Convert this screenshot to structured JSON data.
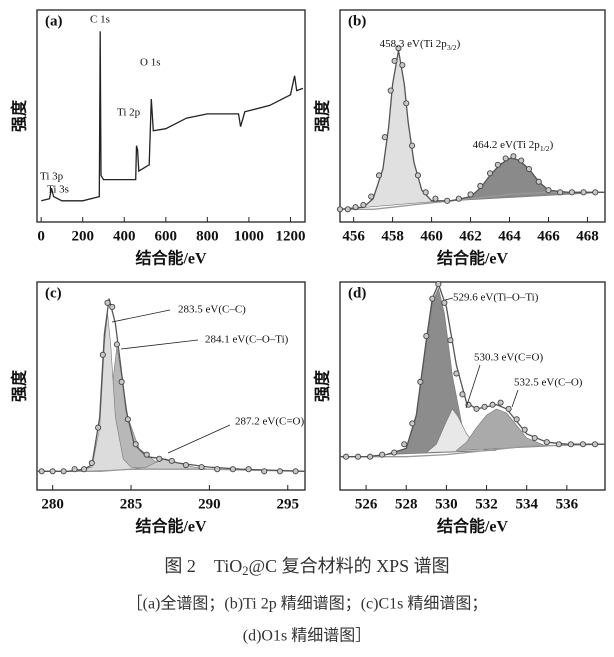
{
  "chart_data": [
    {
      "type": "line",
      "panel": "(a)",
      "xlabel": "结合能/eV",
      "ylabel": "强度",
      "xlim": [
        -20,
        1270
      ],
      "xticks": [
        0,
        200,
        400,
        600,
        800,
        1000,
        1200
      ],
      "ylim": [
        0,
        100
      ],
      "series": [
        {
          "style": "line",
          "color": "#222222",
          "x": [
            0,
            40,
            50,
            60,
            100,
            200,
            280,
            284,
            288,
            300,
            400,
            455,
            459,
            464,
            470,
            520,
            530,
            540,
            600,
            700,
            800,
            950,
            960,
            980,
            1100,
            1200,
            1220,
            1230,
            1260
          ],
          "values": [
            10,
            11,
            16,
            12,
            10,
            10,
            12,
            90,
            22,
            20,
            20,
            20,
            36,
            34,
            24,
            27,
            58,
            43,
            44,
            49,
            51,
            51,
            45,
            52,
            55,
            60,
            69,
            62,
            63
          ]
        }
      ],
      "annotations": [
        "C 1s",
        "O 1s",
        "Ti 2p",
        "Ti 3p",
        "Ti 3s"
      ]
    },
    {
      "type": "line",
      "panel": "(b)",
      "xlabel": "结合能/eV",
      "ylabel": "强度",
      "xlim": [
        455.3,
        468.9
      ],
      "xticks": [
        456,
        458,
        460,
        462,
        464,
        466,
        468
      ],
      "ylim": [
        0,
        100
      ],
      "series": [
        {
          "style": "area",
          "color": "#e0e0e0",
          "x": [
            455.3,
            456.5,
            457,
            457.5,
            457.8,
            458,
            458.3,
            458.6,
            458.8,
            459.1,
            459.5,
            460,
            461,
            462
          ],
          "values": [
            6,
            7,
            11,
            25,
            45,
            65,
            81,
            65,
            47,
            28,
            15,
            10,
            10,
            11
          ]
        },
        {
          "style": "area",
          "color": "#8a8a8a",
          "x": [
            461,
            462,
            462.5,
            463,
            463.5,
            464,
            464.2,
            464.5,
            465,
            465.5,
            466,
            467,
            468.9
          ],
          "values": [
            10,
            12,
            16,
            22,
            27,
            30,
            30,
            29,
            25,
            19,
            15,
            14,
            14
          ]
        },
        {
          "style": "line",
          "color": "#999999",
          "x": [
            455.3,
            457,
            458,
            459,
            460,
            461,
            462,
            463,
            464,
            465,
            466,
            467,
            468.9
          ],
          "values": [
            6,
            6,
            7,
            8,
            9,
            10,
            11,
            12,
            13,
            13.5,
            14,
            14,
            14
          ]
        },
        {
          "style": "line",
          "color": "#555555",
          "x": [
            455.3,
            456.5,
            457,
            457.5,
            457.8,
            458,
            458.3,
            458.6,
            458.8,
            459.1,
            459.5,
            460,
            461,
            462,
            462.5,
            463,
            463.5,
            464,
            464.2,
            464.5,
            465,
            465.5,
            466,
            467,
            468.9
          ],
          "values": [
            6,
            7,
            11,
            25,
            45,
            65,
            81,
            65,
            47,
            28,
            15,
            10,
            10,
            12,
            16,
            22,
            27,
            30,
            30,
            29,
            25,
            19,
            15,
            14,
            14
          ]
        },
        {
          "style": "points",
          "color": "#444444",
          "x": [
            455.3,
            455.7,
            456.1,
            456.5,
            456.9,
            457.3,
            457.6,
            457.9,
            458.1,
            458.3,
            458.5,
            458.7,
            459.0,
            459.3,
            459.7,
            460.2,
            460.8,
            461.4,
            462.0,
            462.5,
            463.0,
            463.4,
            463.8,
            464.2,
            464.6,
            465.0,
            465.5,
            466.0,
            466.6,
            467.2,
            467.8,
            468.4
          ],
          "values": [
            6,
            6,
            7,
            8,
            12,
            22,
            40,
            62,
            76,
            82,
            74,
            56,
            36,
            22,
            14,
            11,
            10,
            11,
            13,
            17,
            23,
            27,
            30,
            31,
            29,
            25,
            19,
            15,
            14,
            14,
            14,
            14
          ]
        }
      ],
      "annotations": [
        {
          "text": "458.3 eV(Ti 2p",
          "sub": "3/2",
          "tail": ")"
        },
        {
          "text": "464.2 eV(Ti 2p",
          "sub": "1/2",
          "tail": ")"
        }
      ]
    },
    {
      "type": "line",
      "panel": "(c)",
      "xlabel": "结合能/eV",
      "ylabel": "强度",
      "xlim": [
        279.0,
        296.1
      ],
      "xticks": [
        280,
        285,
        290,
        295
      ],
      "ylim": [
        0,
        100
      ],
      "series": [
        {
          "style": "area",
          "color": "#b8b8b8",
          "x": [
            282.5,
            283,
            283.5,
            283.8,
            284.1,
            284.4,
            284.8,
            285.5,
            286.5,
            288
          ],
          "values": [
            10,
            12,
            25,
            50,
            69,
            55,
            35,
            20,
            14,
            11
          ]
        },
        {
          "style": "area",
          "color": "#dcdcdc",
          "x": [
            281.5,
            282.5,
            283,
            283.3,
            283.5,
            283.7,
            284,
            284.5,
            285,
            286
          ],
          "values": [
            9,
            11,
            30,
            70,
            85,
            70,
            35,
            15,
            11,
            10
          ]
        },
        {
          "style": "area",
          "color": "#cccccc",
          "x": [
            285,
            286,
            286.5,
            287.2,
            288,
            289,
            290
          ],
          "values": [
            10,
            11,
            13,
            15,
            13,
            11,
            10
          ]
        },
        {
          "style": "line",
          "color": "#999999",
          "x": [
            279,
            283,
            285,
            290,
            296.1
          ],
          "values": [
            9,
            9,
            10,
            10,
            9
          ]
        },
        {
          "style": "line",
          "color": "#555555",
          "x": [
            279,
            281,
            282,
            282.5,
            283,
            283.3,
            283.6,
            284,
            284.3,
            284.7,
            285.2,
            286,
            287,
            288,
            290,
            292,
            296.1
          ],
          "values": [
            9,
            9,
            10,
            12,
            35,
            75,
            92,
            80,
            62,
            38,
            22,
            16,
            15,
            13,
            11,
            10,
            9
          ]
        },
        {
          "style": "points",
          "color": "#444444",
          "x": [
            279.3,
            280,
            280.7,
            281.4,
            282,
            282.5,
            282.9,
            283.2,
            283.5,
            283.8,
            284.1,
            284.4,
            284.8,
            285.3,
            286,
            286.8,
            287.6,
            288.5,
            289.5,
            290.5,
            291.5,
            292.5,
            293.5,
            294.5,
            295.5
          ],
          "values": [
            9,
            9,
            9,
            10,
            10,
            13,
            30,
            65,
            90,
            88,
            70,
            52,
            34,
            22,
            17,
            15,
            14,
            12,
            11,
            10,
            10,
            10,
            9,
            9,
            9
          ]
        }
      ],
      "annotations": [
        "283.5 eV(C–C)",
        "284.1 eV(C–O–Ti)",
        "287.2 eV(C=O)"
      ]
    },
    {
      "type": "line",
      "panel": "(d)",
      "xlabel": "结合能/eV",
      "ylabel": "强度",
      "xlim": [
        524.7,
        537.9
      ],
      "xticks": [
        526,
        528,
        530,
        532,
        534,
        536
      ],
      "ylim": [
        0,
        100
      ],
      "series": [
        {
          "style": "area",
          "color": "#8c8c8c",
          "x": [
            527,
            528,
            528.5,
            529,
            529.3,
            529.6,
            529.9,
            530.3,
            530.8,
            531.5,
            532.5
          ],
          "values": [
            17,
            20,
            35,
            70,
            90,
            97,
            85,
            55,
            30,
            20,
            19
          ]
        },
        {
          "style": "area",
          "color": "#e8e8e8",
          "x": [
            529,
            529.5,
            530,
            530.3,
            530.6,
            531,
            531.5,
            532
          ],
          "values": [
            18,
            22,
            33,
            39,
            35,
            27,
            21,
            19
          ]
        },
        {
          "style": "area",
          "color": "#aaaaaa",
          "x": [
            530.5,
            531,
            531.5,
            532,
            532.5,
            533,
            533.5,
            534,
            535
          ],
          "values": [
            19,
            23,
            30,
            36,
            39,
            37,
            31,
            25,
            21
          ]
        },
        {
          "style": "line",
          "color": "#999999",
          "x": [
            524.7,
            528,
            530,
            532,
            534,
            537.9
          ],
          "values": [
            16,
            16,
            17,
            19,
            21,
            22
          ]
        },
        {
          "style": "line",
          "color": "#555555",
          "x": [
            524.7,
            526,
            527,
            528,
            528.5,
            529,
            529.3,
            529.6,
            530,
            530.5,
            531,
            531.5,
            532,
            532.5,
            533,
            533.5,
            534,
            535,
            536,
            537.9
          ],
          "values": [
            16,
            16,
            17,
            20,
            36,
            72,
            92,
            99,
            88,
            60,
            42,
            39,
            40,
            41,
            39,
            33,
            27,
            23,
            22,
            22
          ]
        },
        {
          "style": "points",
          "color": "#444444",
          "x": [
            525,
            525.6,
            526.2,
            526.8,
            527.4,
            527.9,
            528.3,
            528.7,
            529,
            529.3,
            529.6,
            529.9,
            530.2,
            530.5,
            530.8,
            531.1,
            531.5,
            531.9,
            532.3,
            532.7,
            533.1,
            533.5,
            533.9,
            534.4,
            535,
            535.6,
            536.2,
            536.8,
            537.4
          ],
          "values": [
            16,
            16,
            16,
            17,
            18,
            22,
            32,
            52,
            74,
            92,
            99,
            90,
            72,
            56,
            46,
            41,
            39,
            40,
            41,
            42,
            39,
            34,
            29,
            25,
            23,
            22,
            22,
            22,
            22
          ]
        }
      ],
      "annotations": [
        "529.6 eV(Ti–O–Ti)",
        "530.3 eV(C=O)",
        "532.5 eV(C–O)"
      ]
    }
  ],
  "caption": {
    "title": {
      "text": "图 2　TiO",
      "sub": "2",
      "tail": "@C 复合材料的 XPS 谱图"
    },
    "line1": "［(a)全谱图；(b)Ti 2p 精细谱图；(c)C1s 精细谱图；",
    "line2": "(d)O1s 精细谱图］"
  }
}
